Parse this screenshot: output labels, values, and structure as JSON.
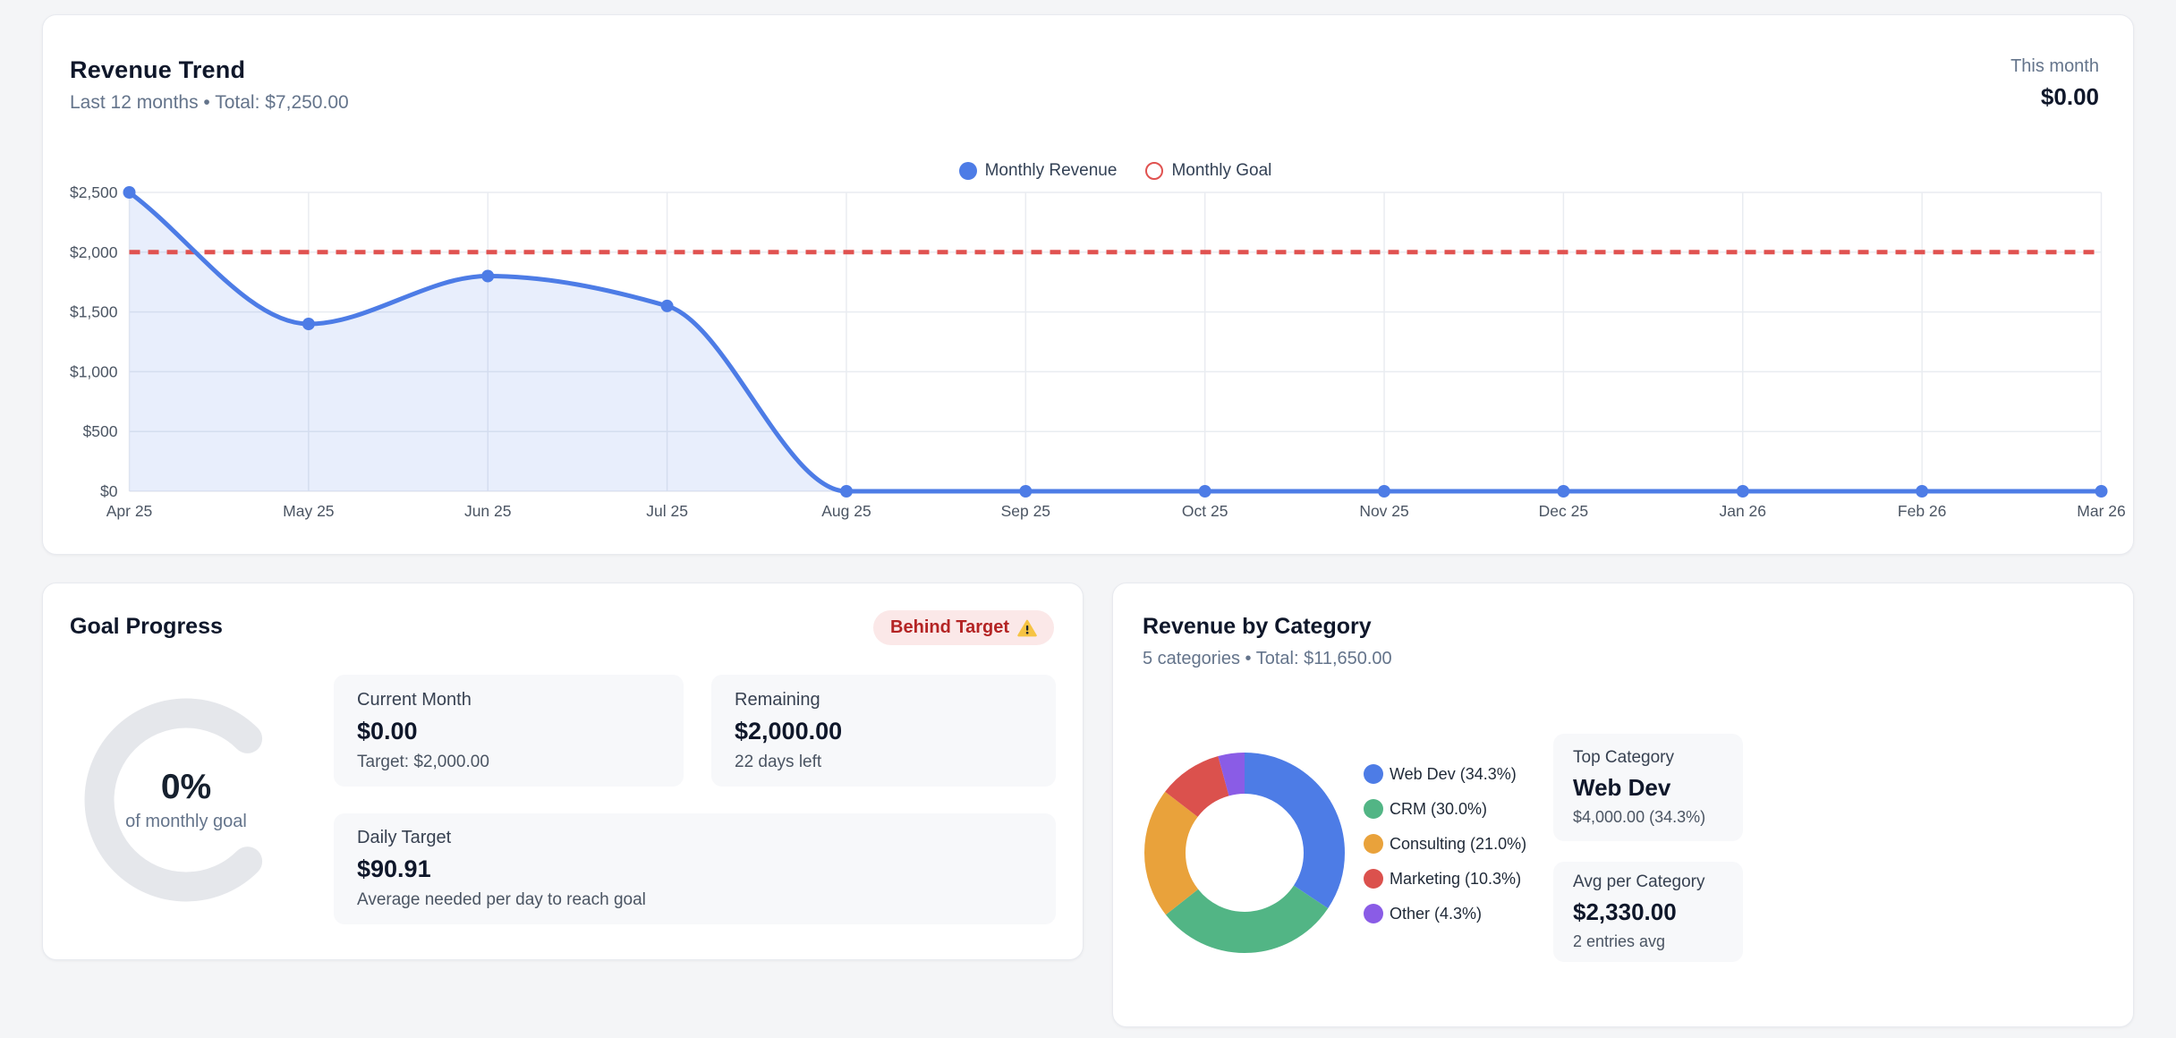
{
  "revenue_trend": {
    "title": "Revenue Trend",
    "subtitle": "Last 12 months • Total: $7,250.00",
    "this_month_label": "This month",
    "this_month_value": "$0.00",
    "legend": [
      {
        "label": "Monthly Revenue",
        "marker": "filled-circle",
        "color": "#4d7ce6"
      },
      {
        "label": "Monthly Goal",
        "marker": "ring-circle",
        "color": "#e05250"
      }
    ]
  },
  "chart_data": [
    {
      "type": "line",
      "title": "Revenue Trend",
      "x": [
        "Apr 25",
        "May 25",
        "Jun 25",
        "Jul 25",
        "Aug 25",
        "Sep 25",
        "Oct 25",
        "Nov 25",
        "Dec 25",
        "Jan 26",
        "Feb 26",
        "Mar 26"
      ],
      "series": [
        {
          "name": "Monthly Revenue",
          "values": [
            2500,
            1400,
            1800,
            1550,
            0,
            0,
            0,
            0,
            0,
            0,
            0,
            0
          ],
          "color": "#4d7ce6",
          "fill": "rgba(77,124,230,0.13)",
          "style": "solid-smooth"
        },
        {
          "name": "Monthly Goal",
          "values": [
            2000,
            2000,
            2000,
            2000,
            2000,
            2000,
            2000,
            2000,
            2000,
            2000,
            2000,
            2000
          ],
          "color": "#e05250",
          "style": "dashed"
        }
      ],
      "ylim": [
        0,
        2500
      ],
      "yticks": [
        {
          "value": 0,
          "label": "$0"
        },
        {
          "value": 500,
          "label": "$500"
        },
        {
          "value": 1000,
          "label": "$1,000"
        },
        {
          "value": 1500,
          "label": "$1,500"
        },
        {
          "value": 2000,
          "label": "$2,000"
        },
        {
          "value": 2500,
          "label": "$2,500"
        }
      ],
      "grid": true,
      "legend_position": "top-center",
      "total_shown": "$7,250.00"
    },
    {
      "type": "pie",
      "title": "Revenue by Category",
      "labels": [
        "Web Dev",
        "CRM",
        "Consulting",
        "Marketing",
        "Other"
      ],
      "values_pct": [
        34.3,
        30.0,
        21.0,
        10.3,
        4.3
      ],
      "values_usd": [
        4000,
        3500,
        2450,
        1200,
        500
      ],
      "colors": [
        "#4d7ce6",
        "#52b585",
        "#e9a23b",
        "#db514d",
        "#8a5ce6"
      ],
      "legend_labels": [
        "Web Dev (34.3%)",
        "CRM (30.0%)",
        "Consulting (21.0%)",
        "Marketing (10.3%)",
        "Other (4.3%)"
      ],
      "total_shown": "$11,650.00",
      "donut": true,
      "legend_position": "right"
    }
  ],
  "goal_progress": {
    "title": "Goal Progress",
    "badge": {
      "label": "Behind Target",
      "icon": "warning-triangle-icon",
      "bg": "#fbe8e8",
      "color": "#b42424"
    },
    "gauge": {
      "percent": 0,
      "percent_label": "0%",
      "caption": "of monthly goal",
      "track_color": "#e5e7eb"
    },
    "stats": [
      {
        "label": "Current Month",
        "value": "$0.00",
        "sub": "Target: $2,000.00"
      },
      {
        "label": "Remaining",
        "value": "$2,000.00",
        "sub": "22 days left"
      },
      {
        "label": "Daily Target",
        "value": "$90.91",
        "sub": "Average needed per day to reach goal"
      }
    ]
  },
  "revenue_by_category": {
    "title": "Revenue by Category",
    "subtitle": "5 categories • Total: $11,650.00",
    "info_boxes": [
      {
        "label": "Top Category",
        "value": "Web Dev",
        "sub": "$4,000.00 (34.3%)"
      },
      {
        "label": "Avg per Category",
        "value": "$2,330.00",
        "sub": "2 entries avg"
      }
    ]
  }
}
